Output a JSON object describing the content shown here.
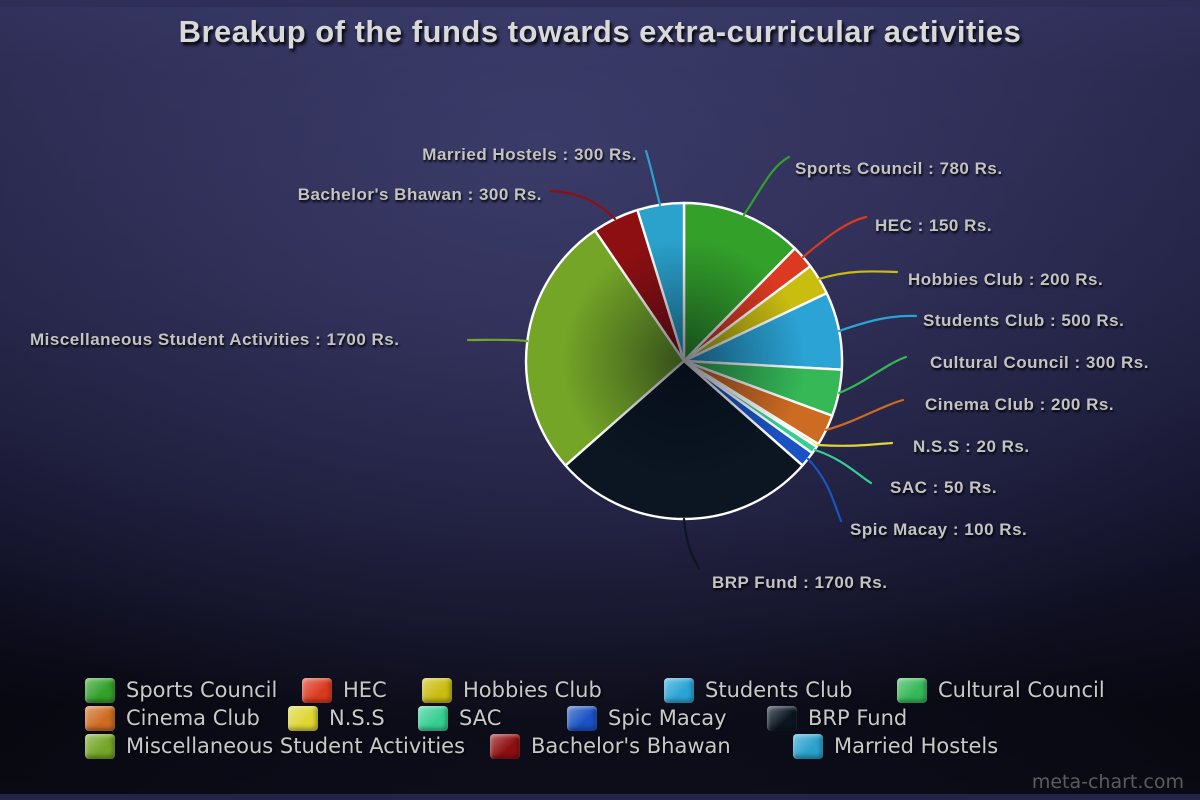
{
  "title": "Breakup of the funds towards extra-curricular activities",
  "watermark": "meta-chart.com",
  "chart_data": {
    "type": "pie",
    "title": "Breakup of the funds towards extra-curricular activities",
    "unit": "Rs.",
    "total": 6300,
    "start_angle_deg": 0,
    "direction": "clockwise",
    "legend_position": "bottom",
    "slices": [
      {
        "name": "Sports Council",
        "value": 780,
        "color": "#33a02a",
        "callout": "Sports Council : 780 Rs."
      },
      {
        "name": "HEC",
        "value": 150,
        "color": "#dc3a20",
        "callout": "HEC : 150 Rs."
      },
      {
        "name": "Hobbies Club",
        "value": 200,
        "color": "#c9bd10",
        "callout": "Hobbies Club : 200 Rs."
      },
      {
        "name": "Students Club",
        "value": 500,
        "color": "#2ba4d5",
        "callout": "Students Club : 500 Rs."
      },
      {
        "name": "Cultural Council",
        "value": 300,
        "color": "#36b857",
        "callout": "Cultural Council : 300 Rs."
      },
      {
        "name": "Cinema Club",
        "value": 200,
        "color": "#ce6b22",
        "callout": "Cinema Club : 200 Rs."
      },
      {
        "name": "N.S.S",
        "value": 20,
        "color": "#ded634",
        "callout": "N.S.S : 20 Rs."
      },
      {
        "name": "SAC",
        "value": 50,
        "color": "#36cf93",
        "callout": "SAC : 50 Rs."
      },
      {
        "name": "Spic Macay",
        "value": 100,
        "color": "#1b52c4",
        "callout": "Spic Macay : 100 Rs."
      },
      {
        "name": "BRP Fund",
        "value": 1700,
        "color": "#0b1622",
        "callout": "BRP Fund : 1700 Rs."
      },
      {
        "name": "Miscellaneous Student Activities",
        "value": 1700,
        "color": "#74a527",
        "callout": "Miscellaneous Student Activities : 1700 Rs."
      },
      {
        "name": "Bachelor's Bhawan",
        "value": 300,
        "color": "#8e0f12",
        "callout": "Bachelor's Bhawan : 300 Rs."
      },
      {
        "name": "Married Hostels",
        "value": 300,
        "color": "#2aa2cc",
        "callout": "Married Hostels : 300 Rs."
      }
    ]
  }
}
